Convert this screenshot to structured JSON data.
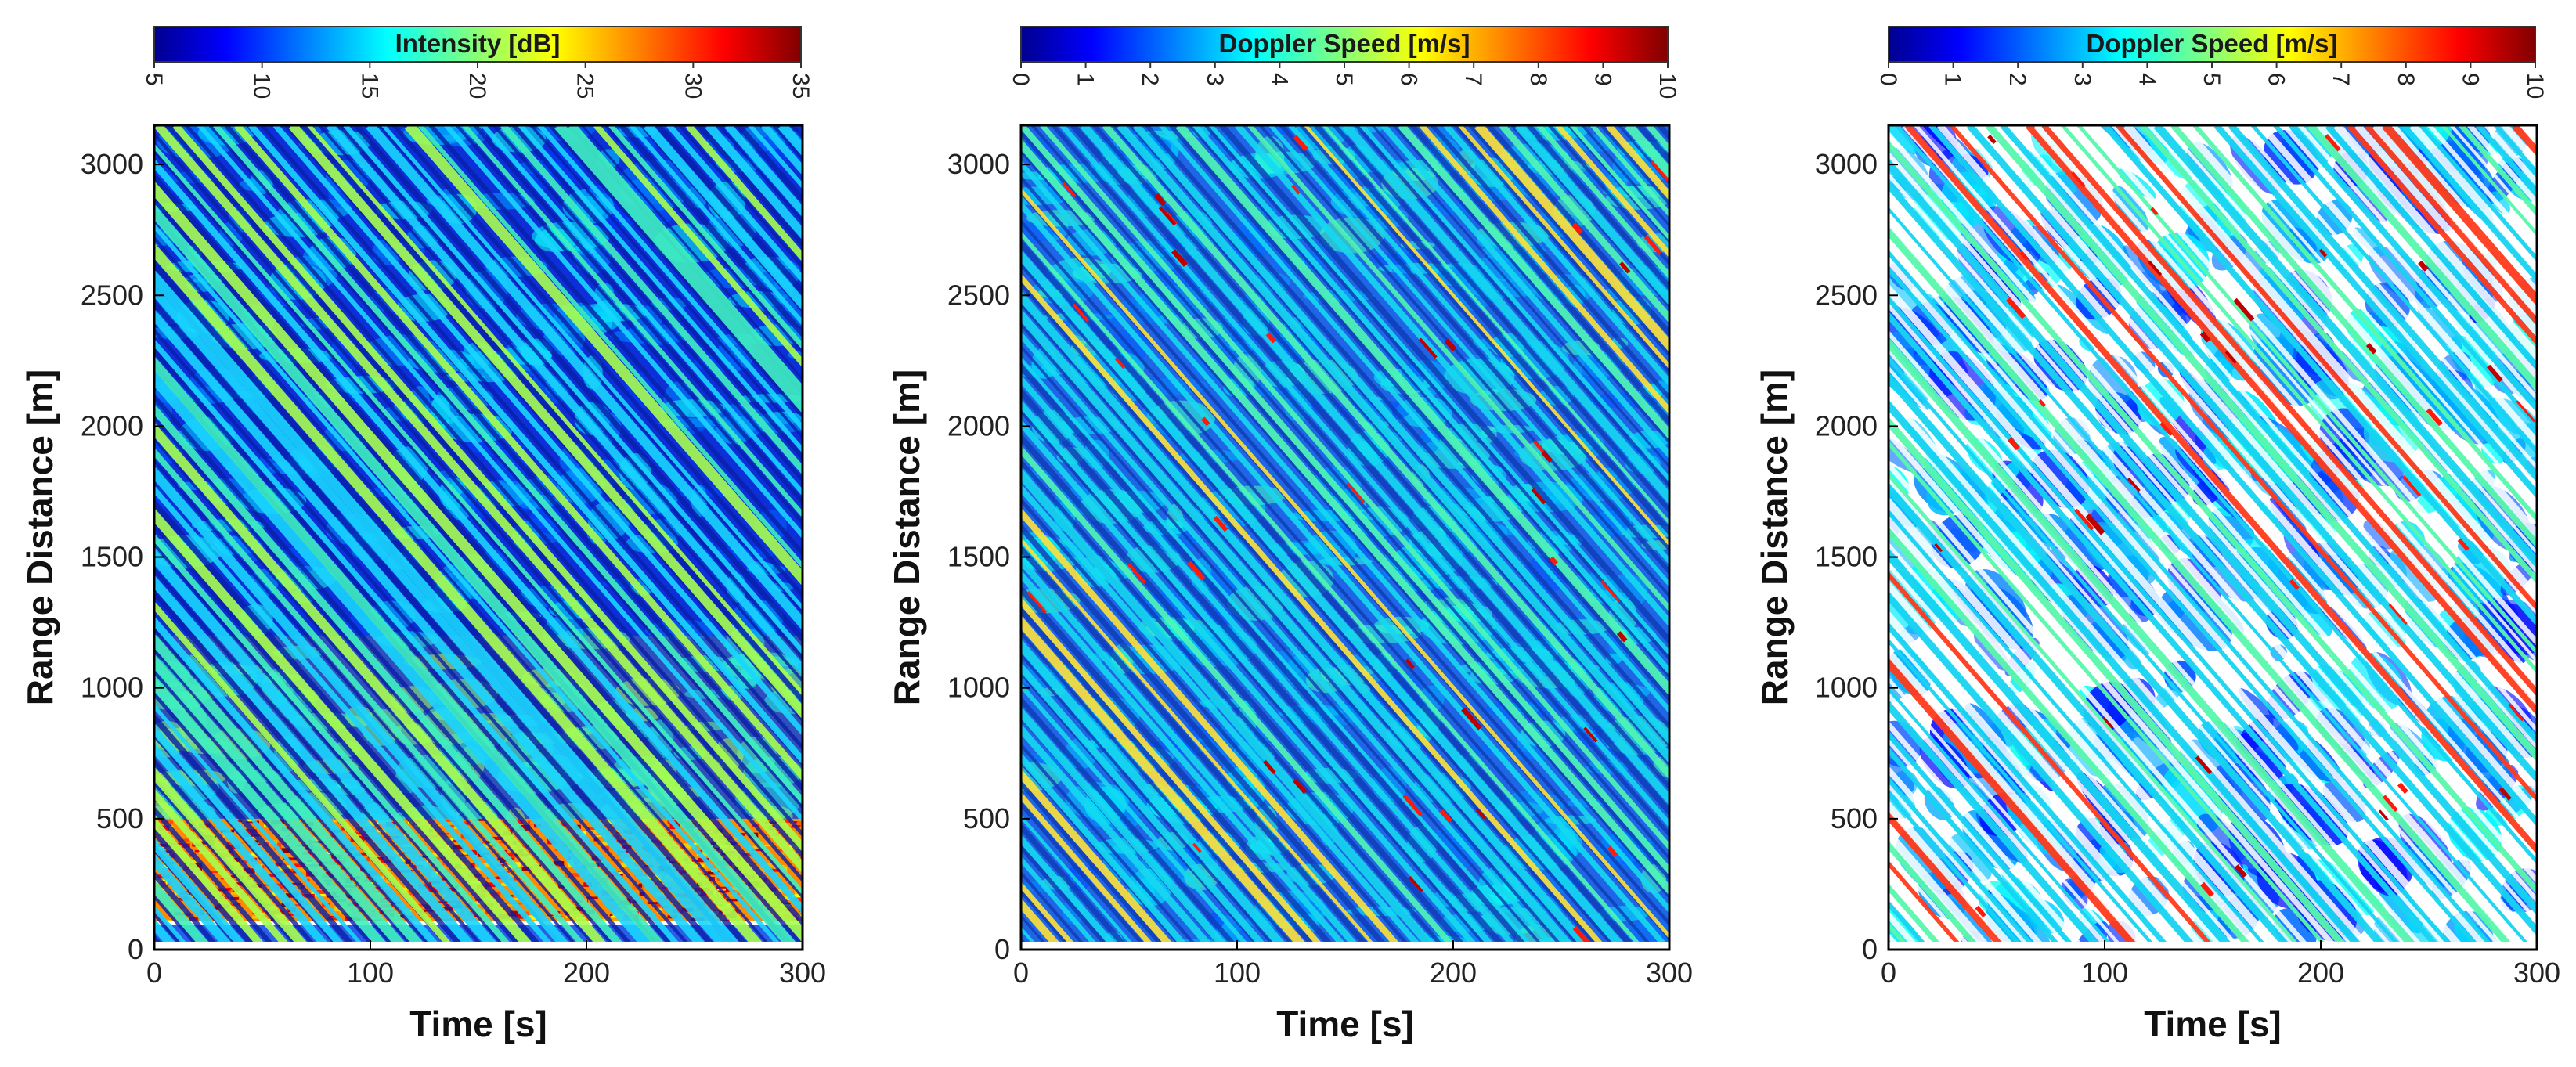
{
  "chart_data": [
    {
      "type": "heatmap",
      "title": "",
      "xlabel": "Time [s]",
      "ylabel": "Range Distance [m]",
      "xlim": [
        0,
        300
      ],
      "ylim": [
        0,
        3150
      ],
      "x_ticks": [
        "0",
        "100",
        "200",
        "300"
      ],
      "y_ticks": [
        "0",
        "500",
        "1000",
        "1500",
        "2000",
        "2500",
        "3000"
      ],
      "colorbar": {
        "label": "Intensity [dB]",
        "range": [
          5,
          35
        ],
        "ticks": [
          "5",
          "10",
          "15",
          "20",
          "25",
          "30",
          "35"
        ],
        "colormap": "jet"
      },
      "stripes": {
        "direction": "diagonal, range decreasing with time",
        "slope_m_per_s": -9.5,
        "spacing_s": 13,
        "count": 72
      },
      "near_range_high_band": {
        "from_m": 110,
        "to_m": 500,
        "level_dB": [
          26,
          35
        ]
      },
      "no_data_band_m": [
        0,
        110
      ]
    },
    {
      "type": "heatmap",
      "title": "",
      "xlabel": "Time [s]",
      "ylabel": "Range Distance [m]",
      "xlim": [
        0,
        300
      ],
      "ylim": [
        0,
        3150
      ],
      "x_ticks": [
        "0",
        "100",
        "200",
        "300"
      ],
      "y_ticks": [
        "0",
        "500",
        "1000",
        "1500",
        "2000",
        "2500",
        "3000"
      ],
      "colorbar": {
        "label": "Doppler Speed [m/s]",
        "range": [
          0,
          10
        ],
        "ticks": [
          "0",
          "1",
          "2",
          "3",
          "4",
          "5",
          "6",
          "7",
          "8",
          "9",
          "10"
        ],
        "colormap": "jet"
      },
      "stripes": {
        "direction": "diagonal, range decreasing with time",
        "slope_m_per_s": -9.5,
        "spacing_s": 13,
        "count": 72
      },
      "typical_speed_m_s": [
        1,
        3
      ],
      "peak_speed_m_s": [
        7,
        10
      ]
    },
    {
      "type": "heatmap",
      "title": "",
      "xlabel": "Time [s]",
      "ylabel": "Range Distance [m]",
      "xlim": [
        0,
        300
      ],
      "ylim": [
        0,
        3150
      ],
      "x_ticks": [
        "0",
        "100",
        "200",
        "300"
      ],
      "y_ticks": [
        "0",
        "500",
        "1000",
        "1500",
        "2000",
        "2500",
        "3000"
      ],
      "colorbar": {
        "label": "Doppler Speed [m/s]",
        "range": [
          0,
          10
        ],
        "ticks": [
          "0",
          "1",
          "2",
          "3",
          "4",
          "5",
          "6",
          "7",
          "8",
          "9",
          "10"
        ],
        "colormap": "jet"
      },
      "stripes": {
        "direction": "diagonal, range decreasing with time",
        "slope_m_per_s": -9.5,
        "spacing_s": 13,
        "count": 72
      },
      "typical_speed_m_s": [
        1,
        3
      ],
      "masked_gaps": "white (filtered pixels)"
    }
  ]
}
